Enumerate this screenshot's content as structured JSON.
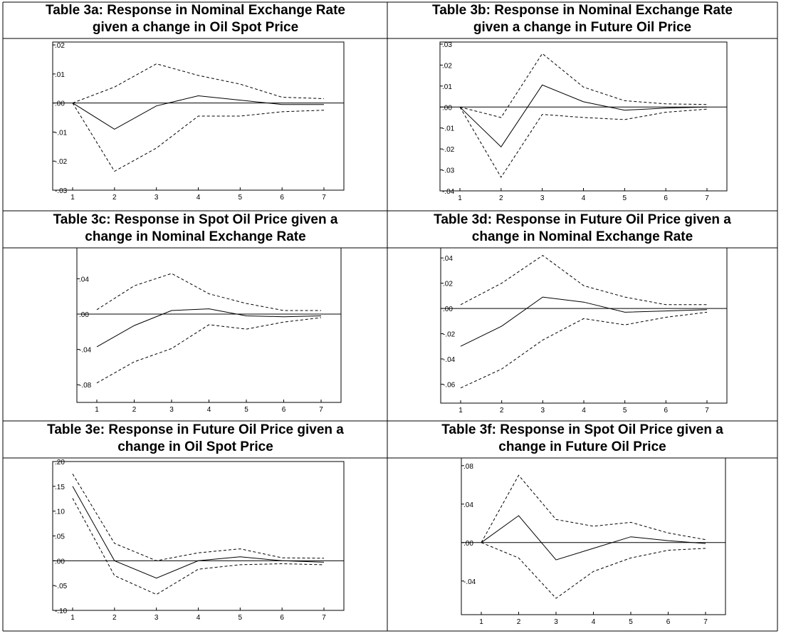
{
  "chart_data": [
    {
      "id": "3a",
      "type": "line",
      "title_line1": "Table 3a: Response in Nominal Exchange Rate",
      "title_line2": "given a change in Oil Spot Price",
      "x": [
        1,
        2,
        3,
        4,
        5,
        6,
        7
      ],
      "ylim": [
        -0.03,
        0.021
      ],
      "yticks": [
        0.02,
        0.01,
        0.0,
        -0.01,
        -0.02,
        -0.03
      ],
      "ytick_labels": [
        ".02",
        ".01",
        ".00",
        "-.01",
        "-.02",
        "-.03"
      ],
      "series": [
        {
          "style": "solid",
          "values": [
            0.0,
            -0.009,
            -0.001,
            0.0025,
            0.001,
            -0.0005,
            -0.0005
          ]
        },
        {
          "style": "dashed",
          "values": [
            0.0,
            0.0055,
            0.0135,
            0.0095,
            0.0065,
            0.002,
            0.0015
          ]
        },
        {
          "style": "dashed",
          "values": [
            0.0,
            -0.0235,
            -0.0155,
            -0.0045,
            -0.0045,
            -0.003,
            -0.0025
          ]
        }
      ]
    },
    {
      "id": "3b",
      "type": "line",
      "title_line1": "Table 3b: Response in Nominal Exchange Rate",
      "title_line2": "given a change in Future Oil Price",
      "x": [
        1,
        2,
        3,
        4,
        5,
        6,
        7
      ],
      "ylim": [
        -0.04,
        0.031
      ],
      "yticks": [
        0.03,
        0.02,
        0.01,
        0.0,
        -0.01,
        -0.02,
        -0.03,
        -0.04
      ],
      "ytick_labels": [
        ".03",
        ".02",
        ".01",
        ".00",
        "-.01",
        "-.02",
        "-.03",
        "-.04"
      ],
      "series": [
        {
          "style": "solid",
          "values": [
            0.0,
            -0.019,
            0.0105,
            0.0025,
            -0.0015,
            -0.0005,
            0.0
          ]
        },
        {
          "style": "dashed",
          "values": [
            0.0,
            -0.005,
            0.0255,
            0.0095,
            0.003,
            0.0015,
            0.0012
          ]
        },
        {
          "style": "dashed",
          "values": [
            0.0,
            -0.0335,
            -0.0035,
            -0.005,
            -0.006,
            -0.0025,
            -0.001
          ]
        }
      ]
    },
    {
      "id": "3c",
      "type": "line",
      "title_line1": "Table 3c: Response in Spot Oil Price given a",
      "title_line2": "change in Nominal Exchange Rate",
      "x": [
        1,
        2,
        3,
        4,
        5,
        6,
        7
      ],
      "ylim": [
        -0.1,
        0.075
      ],
      "yticks": [
        0.04,
        0.0,
        -0.04,
        -0.08
      ],
      "ytick_labels": [
        ".04",
        ".00",
        "-.04",
        "-.08"
      ],
      "series": [
        {
          "style": "solid",
          "values": [
            -0.037,
            -0.013,
            0.004,
            0.006,
            -0.002,
            -0.003,
            -0.002
          ]
        },
        {
          "style": "dashed",
          "values": [
            0.005,
            0.032,
            0.046,
            0.023,
            0.012,
            0.004,
            0.004
          ]
        },
        {
          "style": "dashed",
          "values": [
            -0.078,
            -0.054,
            -0.039,
            -0.012,
            -0.017,
            -0.009,
            -0.004
          ]
        }
      ]
    },
    {
      "id": "3d",
      "type": "line",
      "title_line1": "Table 3d: Response in Future Oil Price given a",
      "title_line2": "change in Nominal Exchange Rate",
      "x": [
        1,
        2,
        3,
        4,
        5,
        6,
        7
      ],
      "ylim": [
        -0.075,
        0.048
      ],
      "yticks": [
        0.04,
        0.02,
        0.0,
        -0.02,
        -0.04,
        -0.06
      ],
      "ytick_labels": [
        ".04",
        ".02",
        ".00",
        "-.02",
        "-.04",
        "-.06"
      ],
      "series": [
        {
          "style": "solid",
          "values": [
            -0.03,
            -0.014,
            0.009,
            0.005,
            -0.003,
            -0.002,
            -0.001
          ]
        },
        {
          "style": "dashed",
          "values": [
            0.003,
            0.02,
            0.042,
            0.018,
            0.009,
            0.003,
            0.003
          ]
        },
        {
          "style": "dashed",
          "values": [
            -0.063,
            -0.048,
            -0.025,
            -0.008,
            -0.013,
            -0.007,
            -0.003
          ]
        }
      ]
    },
    {
      "id": "3e",
      "type": "line",
      "title_line1": "Table 3e: Response in Future Oil Price given a",
      "title_line2": "change in Oil Spot Price",
      "x": [
        1,
        2,
        3,
        4,
        5,
        6,
        7
      ],
      "ylim": [
        -0.1,
        0.2
      ],
      "yticks": [
        0.2,
        0.15,
        0.1,
        0.05,
        0.0,
        -0.05,
        -0.1
      ],
      "ytick_labels": [
        ".20",
        ".15",
        ".10",
        ".05",
        ".00",
        "-.05",
        "-.10"
      ],
      "series": [
        {
          "style": "solid",
          "values": [
            0.15,
            0.0,
            -0.035,
            0.0,
            0.008,
            0.0,
            -0.003
          ]
        },
        {
          "style": "dashed",
          "values": [
            0.175,
            0.035,
            0.0,
            0.016,
            0.024,
            0.006,
            0.005
          ]
        },
        {
          "style": "dashed",
          "values": [
            0.126,
            -0.03,
            -0.068,
            -0.017,
            -0.008,
            -0.006,
            -0.008
          ]
        }
      ]
    },
    {
      "id": "3f",
      "type": "line",
      "title_line1": "Table 3f: Response in Spot Oil Price given a",
      "title_line2": "change in Future Oil Price",
      "x": [
        1,
        2,
        3,
        4,
        5,
        6,
        7
      ],
      "ylim": [
        -0.075,
        0.088
      ],
      "yticks": [
        0.08,
        0.04,
        0.0,
        -0.04
      ],
      "ytick_labels": [
        ".08",
        ".04",
        ".00",
        "-.04"
      ],
      "series": [
        {
          "style": "solid",
          "values": [
            0.0,
            0.028,
            -0.018,
            -0.006,
            0.006,
            0.002,
            -0.001
          ]
        },
        {
          "style": "dashed",
          "values": [
            0.0,
            0.07,
            0.024,
            0.017,
            0.021,
            0.01,
            0.003
          ]
        },
        {
          "style": "dashed",
          "values": [
            0.0,
            -0.016,
            -0.058,
            -0.03,
            -0.016,
            -0.008,
            -0.006
          ]
        }
      ]
    }
  ]
}
